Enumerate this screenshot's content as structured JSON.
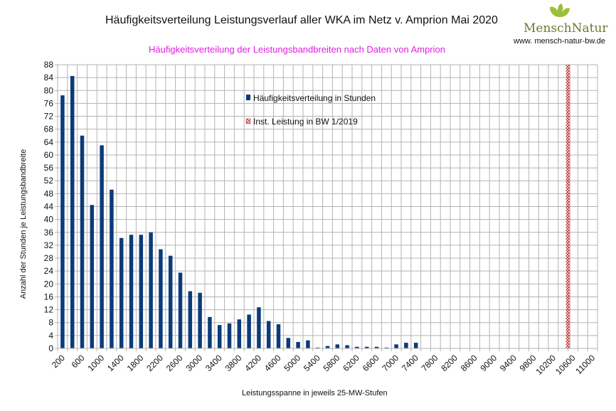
{
  "header": {
    "title": "Häufigkeitsverteilung Leistungsverlauf aller WKA im Netz v. Amprion  Mai 2020",
    "subtitle": "Häufigkeitsverteilung der Leistungsbandbreiten nach Daten von Amprion"
  },
  "logo": {
    "text": "MenschNatur",
    "url": "www. mensch-natur-bw.de",
    "leaf_color": "#9cbf3a"
  },
  "chart_data": {
    "type": "bar",
    "title": "Häufigkeitsverteilung Leistungsverlauf aller WKA im Netz v. Amprion  Mai 2020",
    "subtitle": "Häufigkeitsverteilung der Leistungsbandbreiten nach Daten von Amprion",
    "xlabel": "Leistungsspanne in jeweils 25-MW-Stufen",
    "ylabel": "Anzahl der Stunden je Leistungsbandbreite",
    "ylim": [
      0,
      88
    ],
    "y_ticks": [
      "0",
      "4",
      "8",
      "12",
      "16",
      "20",
      "24",
      "28",
      "32",
      "36",
      "40",
      "44",
      "48",
      "52",
      "56",
      "60",
      "64",
      "68",
      "72",
      "76",
      "80",
      "84",
      "88"
    ],
    "x_ticks": [
      "200",
      "600",
      "1000",
      "1400",
      "1800",
      "2200",
      "2600",
      "3000",
      "3400",
      "3800",
      "4200",
      "4600",
      "5000",
      "5400",
      "5800",
      "6200",
      "6600",
      "7000",
      "7400",
      "7800",
      "8200",
      "8600",
      "9000",
      "9400",
      "9800",
      "10200",
      "10600",
      "11000"
    ],
    "x_range": [
      200,
      11000
    ],
    "category_step": 200,
    "grid": true,
    "series": [
      {
        "name": "Häufigkeitsverteilung in Stunden",
        "color": "#0b3b7a",
        "values": [
          78.5,
          84.5,
          66,
          44.5,
          63,
          49.25,
          34.25,
          35.25,
          35.25,
          36,
          30.75,
          28.75,
          23.5,
          17.75,
          17.25,
          9.75,
          7.25,
          7.75,
          9,
          10.5,
          12.75,
          8.5,
          7.5,
          3.25,
          2,
          2.5,
          0.25,
          0.75,
          1.25,
          1,
          0.5,
          0.5,
          0.5,
          0.25,
          1.25,
          1.75,
          1.75
        ]
      },
      {
        "name": "Inst. Leistung in BW 1/2019",
        "color": "#c03030",
        "x": 10500,
        "value": 88
      }
    ]
  }
}
